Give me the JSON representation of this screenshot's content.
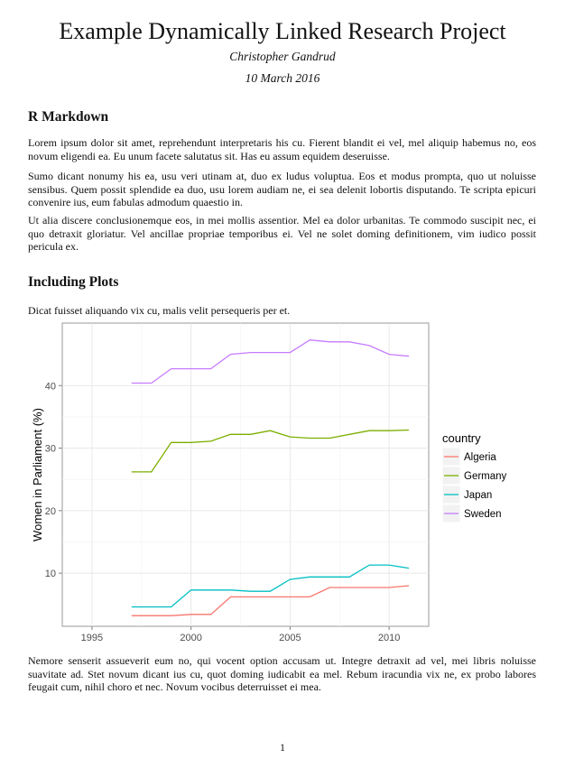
{
  "title": "Example Dynamically Linked Research Project",
  "author": "Christopher Gandrud",
  "date": "10 March 2016",
  "sections": [
    {
      "heading": "R Markdown",
      "paragraphs": [
        "Lorem ipsum dolor sit amet, reprehendunt interpretaris his cu. Fierent blandit ei vel, mel aliquip habemus no, eos novum eligendi ea. Eu unum facete salutatus sit. Has eu assum equidem deseruisse.",
        "Sumo dicant nonumy his ea, usu veri utinam at, duo ex ludus voluptua. Eos et modus prompta, quo ut noluisse sensibus. Quem possit splendide ea duo, usu lorem audiam ne, ei sea delenit lobortis disputando. Te scripta epicuri convenire ius, eum fabulas admodum quaestio in.",
        "Ut alia discere conclusionemque eos, in mei mollis assentior. Mel ea dolor urbanitas. Te commodo suscipit nec, ei quo detraxit gloriatur. Vel ancillae propriae temporibus ei. Vel ne solet doming definitionem, vim iudico possit pericula ex."
      ]
    },
    {
      "heading": "Including Plots",
      "intro": "Dicat fuisset aliquando vix cu, malis velit persequeris per et.",
      "after": "Nemore senserit assueverit eum no, qui vocent option accusam ut. Integre detraxit ad vel, mei libris noluisse suavitate ad. Stet novum dicant ius cu, quot doming iudicabit ea mel. Rebum iracundia vix ne, ex probo labores feugait cum, nihil choro et nec. Novum vocibus deterruisset ei mea."
    }
  ],
  "page_number": "1",
  "chart_data": {
    "type": "line",
    "title": "",
    "xlabel": "",
    "ylabel": "Women in Parliament (%)",
    "xlim": [
      1993.5,
      2012
    ],
    "ylim": [
      1.5,
      50
    ],
    "x_ticks": [
      1995,
      2000,
      2005,
      2010
    ],
    "y_ticks": [
      10,
      20,
      30,
      40
    ],
    "grid": true,
    "legend_title": "country",
    "legend_position": "right",
    "x": [
      1997,
      1998,
      1999,
      2000,
      2001,
      2002,
      2003,
      2004,
      2005,
      2006,
      2007,
      2008,
      2009,
      2010,
      2011
    ],
    "series": [
      {
        "name": "Algeria",
        "color": "#f8766d",
        "values": [
          3.2,
          3.2,
          3.2,
          3.4,
          3.4,
          6.2,
          6.2,
          6.2,
          6.2,
          6.2,
          7.7,
          7.7,
          7.7,
          7.7,
          8.0
        ]
      },
      {
        "name": "Germany",
        "color": "#7cae00",
        "values": [
          26.2,
          26.2,
          30.9,
          30.9,
          31.1,
          32.2,
          32.2,
          32.8,
          31.8,
          31.6,
          31.6,
          32.2,
          32.8,
          32.8,
          32.9
        ]
      },
      {
        "name": "Japan",
        "color": "#00bfc4",
        "values": [
          4.6,
          4.6,
          4.6,
          7.3,
          7.3,
          7.3,
          7.1,
          7.1,
          9.0,
          9.4,
          9.4,
          9.4,
          11.3,
          11.3,
          10.8
        ]
      },
      {
        "name": "Sweden",
        "color": "#c77cff",
        "values": [
          40.4,
          40.4,
          42.7,
          42.7,
          42.7,
          45.0,
          45.3,
          45.3,
          45.3,
          47.3,
          47.0,
          47.0,
          46.4,
          45.0,
          44.7
        ]
      }
    ]
  }
}
